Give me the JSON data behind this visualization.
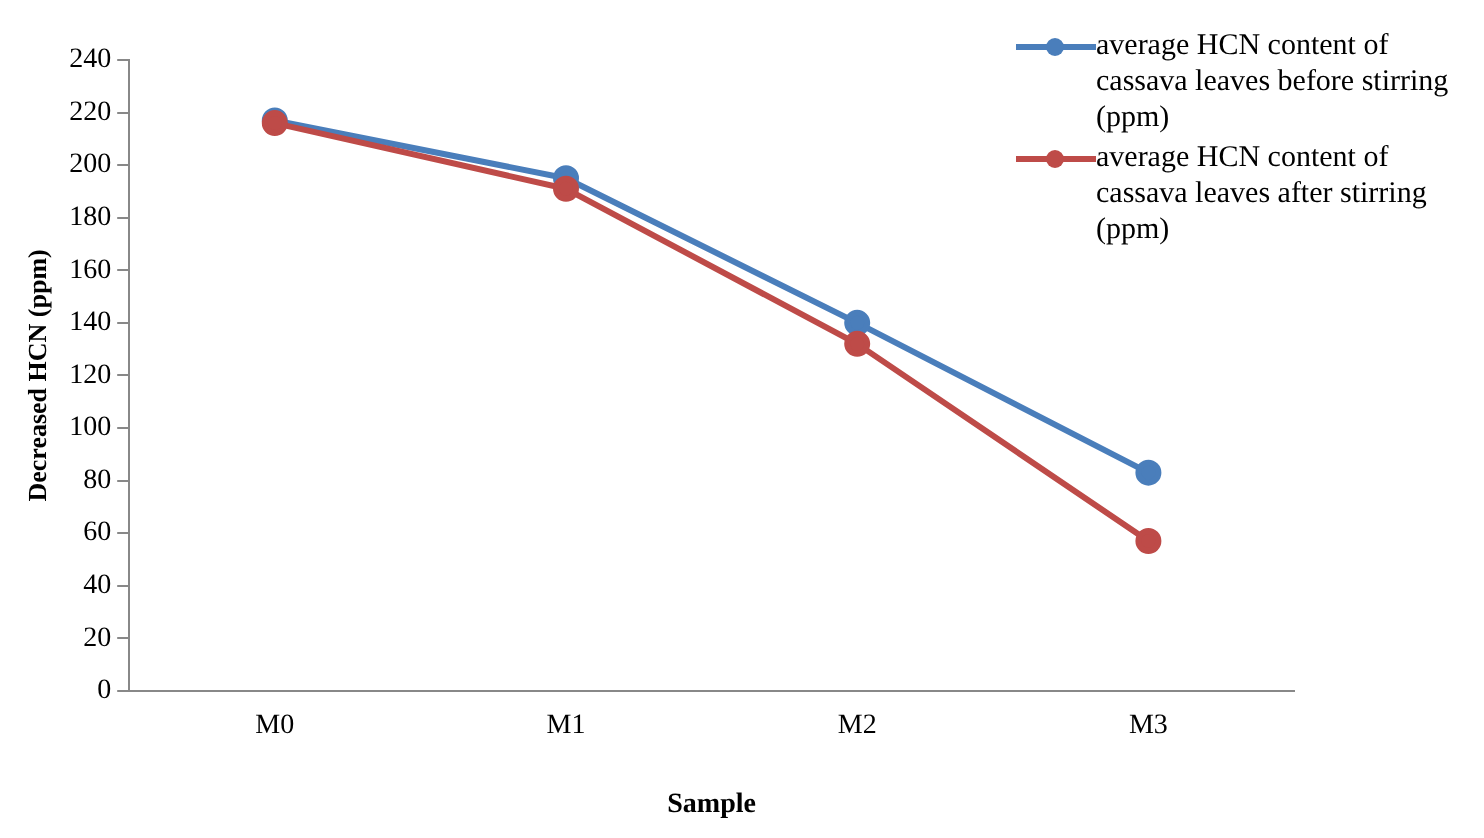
{
  "chart_data": {
    "type": "line",
    "xlabel": "Sample",
    "ylabel": "Decreased HCN (ppm)",
    "categories": [
      "M0",
      "M1",
      "M2",
      "M3"
    ],
    "series": [
      {
        "name": "average HCN content of cassava leaves before stirring (ppm)",
        "color": "#4a7ebb",
        "values": [
          217,
          195,
          140,
          83
        ]
      },
      {
        "name": "average HCN content of cassava leaves after stirring (ppm)",
        "color": "#be4b48",
        "values": [
          216,
          191,
          132,
          57
        ]
      }
    ],
    "ylim": [
      0,
      240
    ],
    "yticks": [
      0,
      20,
      40,
      60,
      80,
      100,
      120,
      140,
      160,
      180,
      200,
      220,
      240
    ],
    "grid": false,
    "legend": "top right",
    "marker": "circle",
    "line_style": "solid"
  }
}
